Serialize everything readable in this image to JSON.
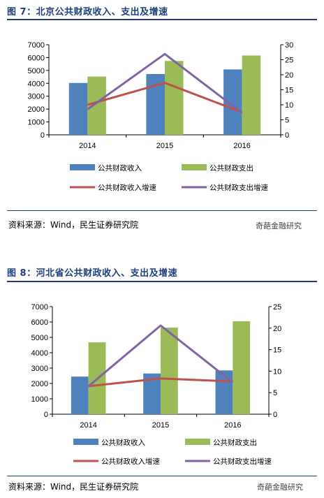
{
  "figures": [
    {
      "title": "图 7：北京公共财政收入、支出及增速",
      "source": "资料来源：Wind，民生证券研究院",
      "watermark": "奇葩金融研究",
      "chart_data": {
        "type": "bar",
        "categories": [
          "2014",
          "2015",
          "2016"
        ],
        "series": [
          {
            "name": "公共财政收入",
            "type": "bar",
            "axis": "left",
            "color": "#4f81bd",
            "values": [
              4027,
              4724,
              5081
            ]
          },
          {
            "name": "公共财政支出",
            "type": "bar",
            "axis": "left",
            "color": "#9bbb59",
            "values": [
              4525,
              5738,
              6161
            ]
          },
          {
            "name": "公共财政收入增速",
            "type": "line",
            "axis": "right",
            "color": "#c0504d",
            "values": [
              10.0,
              17.3,
              7.5
            ]
          },
          {
            "name": "公共财政支出增速",
            "type": "line",
            "axis": "right",
            "color": "#8064a2",
            "values": [
              8.5,
              26.9,
              7.3
            ]
          }
        ],
        "ylim": [
          0,
          7000
        ],
        "yticks": [
          "0",
          "1000",
          "2000",
          "3000",
          "4000",
          "5000",
          "6000",
          "7000"
        ],
        "y2lim": [
          0,
          30
        ],
        "y2ticks": [
          "0",
          "5",
          "10",
          "15",
          "20",
          "25",
          "30"
        ],
        "legend_position": "bottom"
      }
    },
    {
      "title": "图 8：河北省公共财政收入、支出及增速",
      "source": "资料来源：Wind，民生证券研究院",
      "watermark": "奇葩金融研究",
      "chart_data": {
        "type": "bar",
        "categories": [
          "2014",
          "2015",
          "2016"
        ],
        "series": [
          {
            "name": "公共财政收入",
            "type": "bar",
            "axis": "left",
            "color": "#4f81bd",
            "values": [
              2447,
              2649,
              2850
            ]
          },
          {
            "name": "公共财政支出",
            "type": "bar",
            "axis": "left",
            "color": "#9bbb59",
            "values": [
              4678,
              5632,
              6050
            ]
          },
          {
            "name": "公共财政收入增速",
            "type": "line",
            "axis": "right",
            "color": "#c0504d",
            "values": [
              6.5,
              8.3,
              7.6
            ]
          },
          {
            "name": "公共财政支出增速",
            "type": "line",
            "axis": "right",
            "color": "#8064a2",
            "values": [
              6.5,
              20.6,
              7.4
            ]
          }
        ],
        "ylim": [
          0,
          7000
        ],
        "yticks": [
          "0",
          "1000",
          "2000",
          "3000",
          "4000",
          "5000",
          "6000",
          "7000"
        ],
        "y2lim": [
          0,
          25
        ],
        "y2ticks": [
          "0",
          "5",
          "10",
          "15",
          "20",
          "25"
        ],
        "legend_position": "bottom"
      }
    }
  ]
}
